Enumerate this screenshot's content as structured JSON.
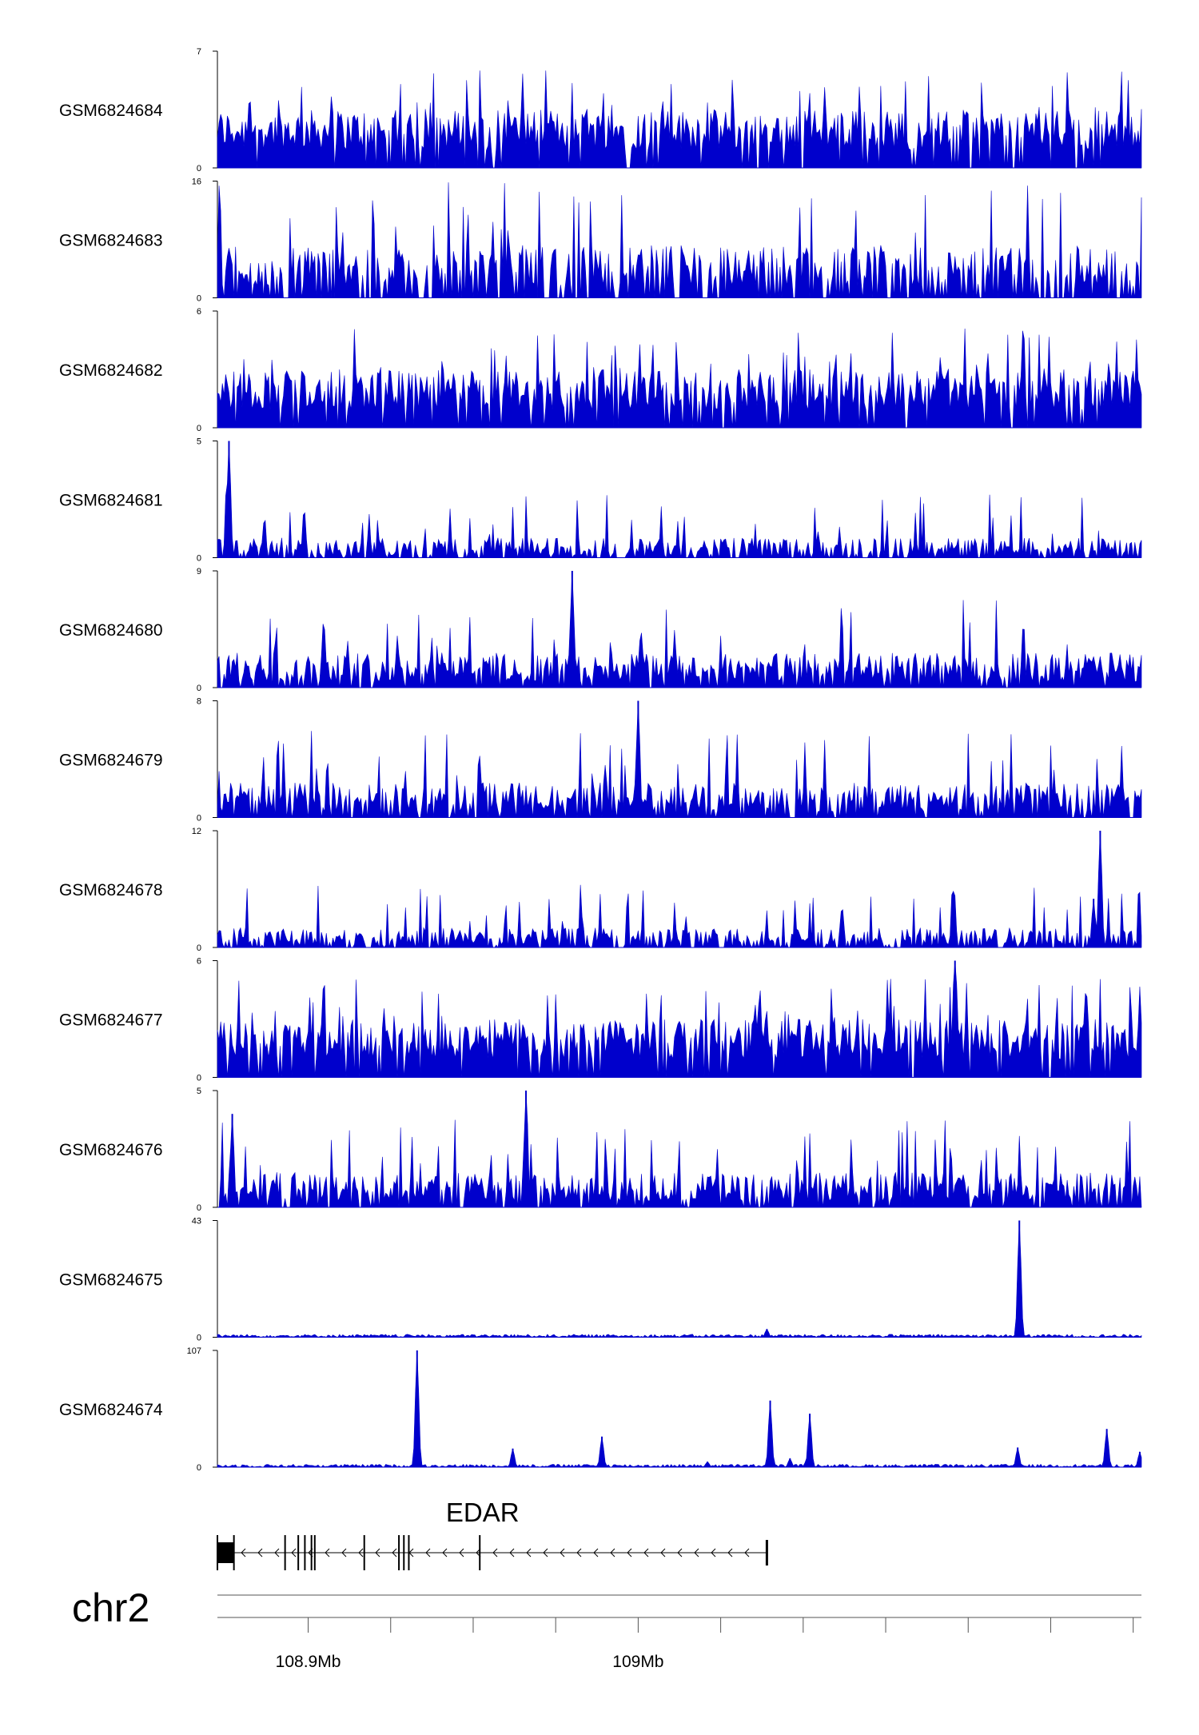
{
  "chart_data": {
    "type": "area",
    "title": "",
    "chromosome": "chr2",
    "x_range_mb": [
      108.8725,
      109.1525
    ],
    "colors": {
      "signal": "#0000cc",
      "axis": "#000000",
      "gene": "#000000"
    },
    "tracks": [
      {
        "name": "GSM6824684",
        "ymin": 0,
        "ymax": 7,
        "ymin_label": "0",
        "ymax_label": "7",
        "profile": "dense"
      },
      {
        "name": "GSM6824683",
        "ymin": 0,
        "ymax": 16,
        "ymin_label": "0",
        "ymax_label": "16",
        "profile": "gappy"
      },
      {
        "name": "GSM6824682",
        "ymin": 0,
        "ymax": 6,
        "ymin_label": "0",
        "ymax_label": "6",
        "profile": "dense"
      },
      {
        "name": "GSM6824681",
        "ymin": 0,
        "ymax": 5,
        "ymin_label": "0",
        "ymax_label": "5",
        "profile": "low",
        "peaks": [
          {
            "x": 108.876,
            "y": 5
          }
        ]
      },
      {
        "name": "GSM6824680",
        "ymin": 0,
        "ymax": 9,
        "ymin_label": "0",
        "ymax_label": "9",
        "profile": "medium",
        "peaks": [
          {
            "x": 108.98,
            "y": 9
          }
        ]
      },
      {
        "name": "GSM6824679",
        "ymin": 0,
        "ymax": 8,
        "ymin_label": "0",
        "ymax_label": "8",
        "profile": "medium",
        "peaks": [
          {
            "x": 109.0,
            "y": 8
          }
        ]
      },
      {
        "name": "GSM6824678",
        "ymin": 0,
        "ymax": 12,
        "ymin_label": "0",
        "ymax_label": "12",
        "profile": "low",
        "peaks": [
          {
            "x": 109.14,
            "y": 12
          },
          {
            "x": 109.138,
            "y": 5
          }
        ]
      },
      {
        "name": "GSM6824677",
        "ymin": 0,
        "ymax": 6,
        "ymin_label": "0",
        "ymax_label": "6",
        "profile": "dense",
        "peaks": [
          {
            "x": 109.096,
            "y": 6
          }
        ]
      },
      {
        "name": "GSM6824676",
        "ymin": 0,
        "ymax": 5,
        "ymin_label": "0",
        "ymax_label": "5",
        "profile": "medium",
        "peaks": [
          {
            "x": 108.966,
            "y": 5
          },
          {
            "x": 108.877,
            "y": 4
          }
        ]
      },
      {
        "name": "GSM6824675",
        "ymin": 0,
        "ymax": 43,
        "ymin_label": "0",
        "ymax_label": "43",
        "profile": "flat",
        "peaks": [
          {
            "x": 109.1155,
            "y": 43
          },
          {
            "x": 109.039,
            "y": 3
          }
        ]
      },
      {
        "name": "GSM6824674",
        "ymin": 0,
        "ymax": 107,
        "ymin_label": "0",
        "ymax_label": "107",
        "profile": "flat",
        "peaks": [
          {
            "x": 108.933,
            "y": 107
          },
          {
            "x": 108.962,
            "y": 17
          },
          {
            "x": 108.989,
            "y": 28
          },
          {
            "x": 109.04,
            "y": 61
          },
          {
            "x": 109.052,
            "y": 49
          },
          {
            "x": 109.115,
            "y": 18
          },
          {
            "x": 109.142,
            "y": 35
          },
          {
            "x": 109.152,
            "y": 14
          },
          {
            "x": 109.051,
            "y": 6
          },
          {
            "x": 109.046,
            "y": 8
          },
          {
            "x": 109.021,
            "y": 5
          }
        ]
      }
    ],
    "gene": {
      "name": "EDAR",
      "strand": "-",
      "start_mb": 108.8725,
      "end_mb": 109.039,
      "exons_mb": [
        108.8725,
        108.8775,
        108.893,
        108.897,
        108.899,
        108.901,
        108.902,
        108.917,
        108.9275,
        108.929,
        108.9305,
        108.952
      ]
    },
    "x_axis": {
      "ticks_mb": [
        108.9,
        108.95,
        109.0,
        109.05,
        109.1,
        109.15,
        108.925,
        108.975,
        109.025,
        109.075,
        109.125
      ],
      "labeled_ticks": [
        {
          "value": 108.9,
          "label": "108.9Mb"
        },
        {
          "value": 109.0,
          "label": "109Mb"
        }
      ]
    }
  }
}
